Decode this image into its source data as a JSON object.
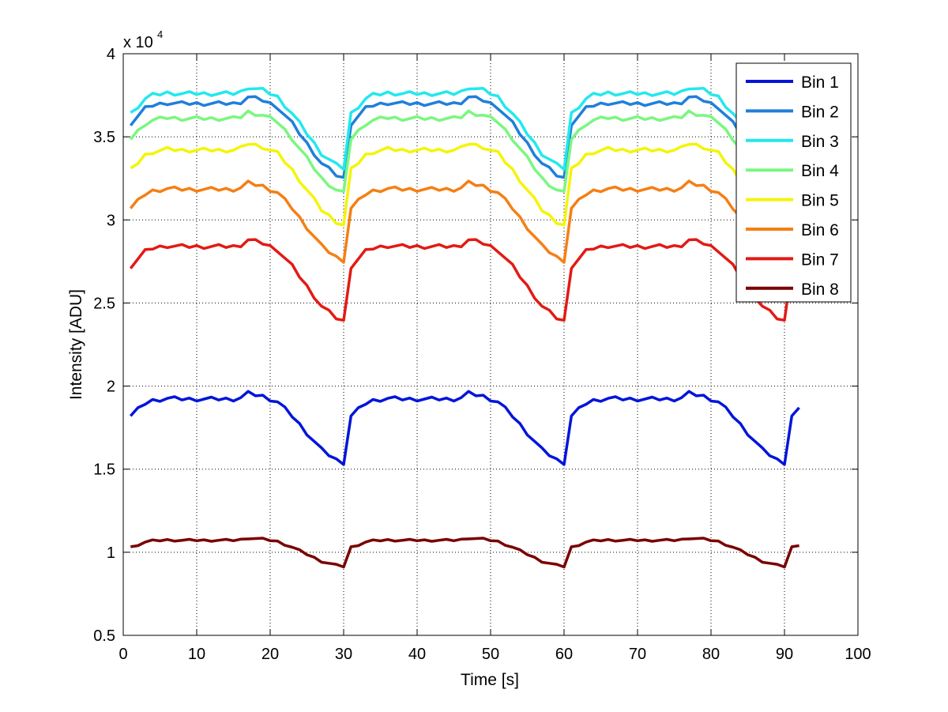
{
  "chart_data": {
    "type": "line",
    "title": "",
    "xlabel": "Time [s]",
    "ylabel": "Intensity [ADU]",
    "y_exponent_label": "x 10",
    "y_exponent_power": "4",
    "xlim": [
      0,
      100
    ],
    "ylim": [
      0.5,
      4
    ],
    "xticks": [
      0,
      10,
      20,
      30,
      40,
      50,
      60,
      70,
      80,
      90,
      100
    ],
    "yticks": [
      0.5,
      1,
      1.5,
      2,
      2.5,
      3,
      3.5,
      4
    ],
    "xtick_labels": [
      "0",
      "10",
      "20",
      "30",
      "40",
      "50",
      "60",
      "70",
      "80",
      "90",
      "100"
    ],
    "ytick_labels": [
      "0.5",
      "1",
      "1.5",
      "2",
      "2.5",
      "3",
      "3.5",
      "4"
    ],
    "grid": true,
    "legend_position": "top-right",
    "x_start": 1,
    "x_end": 92,
    "period_s": 30,
    "series": [
      {
        "name": "Bin 1",
        "color": "#0015d9",
        "offset": 1.82,
        "scale": 0.85,
        "ripple": 0.012
      },
      {
        "name": "Bin 2",
        "color": "#1f7fdb",
        "offset": 3.58,
        "scale": 1.0,
        "ripple": 0.012
      },
      {
        "name": "Bin 3",
        "color": "#23e8ee",
        "offset": 3.64,
        "scale": 1.0,
        "ripple": 0.012
      },
      {
        "name": "Bin 4",
        "color": "#7af77f",
        "offset": 3.49,
        "scale": 1.0,
        "ripple": 0.012
      },
      {
        "name": "Bin 5",
        "color": "#f4f40a",
        "offset": 3.3,
        "scale": 1.0,
        "ripple": 0.012
      },
      {
        "name": "Bin 6",
        "color": "#f57f14",
        "offset": 3.07,
        "scale": 0.95,
        "ripple": 0.012
      },
      {
        "name": "Bin 7",
        "color": "#e31a14",
        "offset": 2.72,
        "scale": 1.0,
        "ripple": 0.012
      },
      {
        "name": "Bin 8",
        "color": "#7a0000",
        "offset": 1.03,
        "scale": 0.35,
        "ripple": 0.006
      }
    ],
    "cycle_shape": {
      "t": [
        0,
        1,
        2,
        3,
        5,
        7,
        9,
        12,
        14,
        15,
        16,
        18,
        20,
        22,
        24,
        26,
        28,
        29,
        29.5
      ],
      "dv": [
        0,
        0.045,
        0.09,
        0.11,
        0.125,
        0.12,
        0.12,
        0.12,
        0.12,
        0.13,
        0.16,
        0.14,
        0.1,
        0.0,
        -0.12,
        -0.24,
        -0.31,
        -0.33,
        -0.32
      ]
    }
  }
}
